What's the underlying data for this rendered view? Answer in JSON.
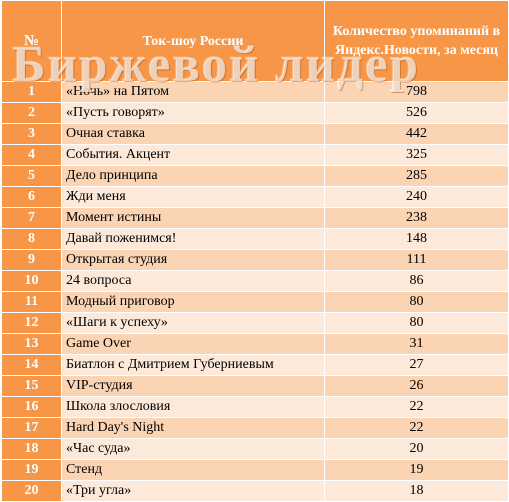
{
  "table": {
    "headers": {
      "num": "№",
      "show": "Ток-шоу России",
      "count": "Количество упоминаний в Яндекс.Новости, за месяц"
    },
    "rows": [
      {
        "num": "1",
        "show": "«Ночь» на Пятом",
        "count": "798"
      },
      {
        "num": "2",
        "show": "«Пусть говорят»",
        "count": "526"
      },
      {
        "num": "3",
        "show": "Очная ставка",
        "count": "442"
      },
      {
        "num": "4",
        "show": "События. Акцент",
        "count": "325"
      },
      {
        "num": "5",
        "show": "Дело принципа",
        "count": "285"
      },
      {
        "num": "6",
        "show": "Жди меня",
        "count": "240"
      },
      {
        "num": "7",
        "show": "Момент истины",
        "count": "238"
      },
      {
        "num": "8",
        "show": "Давай поженимся!",
        "count": "148"
      },
      {
        "num": "9",
        "show": "Открытая студия",
        "count": "111"
      },
      {
        "num": "10",
        "show": "24 вопроса",
        "count": "86"
      },
      {
        "num": "11",
        "show": "Модный приговор",
        "count": "80"
      },
      {
        "num": "12",
        "show": "«Шаги к успеху»",
        "count": "80"
      },
      {
        "num": "13",
        "show": "Game Over",
        "count": "31"
      },
      {
        "num": "14",
        "show": "Биатлон с Дмитрием Губерниевым",
        "count": "27"
      },
      {
        "num": "15",
        "show": "VIP-студия",
        "count": "26"
      },
      {
        "num": "16",
        "show": "Школа злословия",
        "count": "22"
      },
      {
        "num": "17",
        "show": "Hard Day's Night",
        "count": "22"
      },
      {
        "num": "18",
        "show": "«Час суда»",
        "count": "20"
      },
      {
        "num": "19",
        "show": "Стенд",
        "count": "19"
      },
      {
        "num": "20",
        "show": "«Три угла»",
        "count": "18"
      }
    ]
  },
  "watermark": "Биржевой лидер",
  "colors": {
    "header_bg": "#f79646",
    "row_odd": "#fbd4b4",
    "row_even": "#fde9d9"
  }
}
